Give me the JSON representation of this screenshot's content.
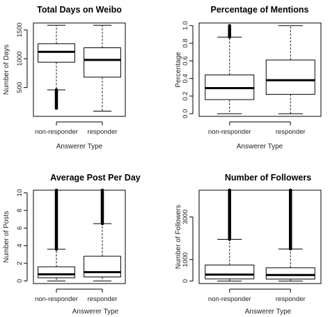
{
  "chart_data": [
    {
      "type": "boxplot",
      "title": "Total Days on Weibo",
      "xlabel": "Answerer Type",
      "ylabel": "Number of Days",
      "categories": [
        "non-responder",
        "responder"
      ],
      "ylim": [
        0,
        1620
      ],
      "yticks": [
        500,
        1000,
        1500
      ],
      "yticklabels": [
        "500",
        "1000",
        "1500"
      ],
      "boxes": [
        {
          "whisker_low": 460,
          "q1": 940,
          "median": 1120,
          "q3": 1260,
          "whisker_high": 1580,
          "outliers": [
            [
              140,
              460
            ]
          ]
        },
        {
          "whisker_low": 90,
          "q1": 680,
          "median": 980,
          "q3": 1190,
          "whisker_high": 1580,
          "outliers": []
        }
      ]
    },
    {
      "type": "boxplot",
      "title": "Percentage of Mentions",
      "xlabel": "Answerer Type",
      "ylabel": "Percentage",
      "categories": [
        "non-responder",
        "responder"
      ],
      "ylim": [
        -0.03,
        1.03
      ],
      "yticks": [
        0.0,
        0.2,
        0.4,
        0.6,
        0.8,
        1.0
      ],
      "yticklabels": [
        "0.0",
        "0.2",
        "0.4",
        "0.6",
        "0.8",
        "1.0"
      ],
      "boxes": [
        {
          "whisker_low": 0.0,
          "q1": 0.16,
          "median": 0.29,
          "q3": 0.44,
          "whisker_high": 0.87,
          "outliers": [
            [
              0.87,
              1.0
            ]
          ]
        },
        {
          "whisker_low": 0.0,
          "q1": 0.22,
          "median": 0.38,
          "q3": 0.61,
          "whisker_high": 1.0,
          "outliers": []
        }
      ]
    },
    {
      "type": "boxplot",
      "title": "Average Post Per Day",
      "xlabel": "Answerer Type",
      "ylabel": "Number of Posts",
      "categories": [
        "non-responder",
        "responder"
      ],
      "ylim": [
        -0.3,
        10.3
      ],
      "yticks": [
        0,
        2,
        4,
        6,
        8,
        10
      ],
      "yticklabels": [
        "0",
        "2",
        "4",
        "6",
        "8",
        "10"
      ],
      "boxes": [
        {
          "whisker_low": 0.0,
          "q1": 0.35,
          "median": 0.75,
          "q3": 1.6,
          "whisker_high": 3.6,
          "outliers": [
            [
              3.6,
              10.3
            ]
          ]
        },
        {
          "whisker_low": 0.0,
          "q1": 0.45,
          "median": 1.0,
          "q3": 2.8,
          "whisker_high": 6.5,
          "outliers": [
            [
              6.5,
              10.3
            ]
          ]
        }
      ]
    },
    {
      "type": "boxplot",
      "title": "Number of Followers",
      "xlabel": "Answerer Type",
      "ylabel": "Number of Followers",
      "categories": [
        "non-responder",
        "responder"
      ],
      "ylim": [
        -120,
        4250
      ],
      "yticks": [
        0,
        1000,
        3000
      ],
      "yticklabels": [
        "0",
        "1000",
        "3000"
      ],
      "boxes": [
        {
          "whisker_low": 0,
          "q1": 100,
          "median": 300,
          "q3": 750,
          "whisker_high": 1950,
          "outliers": [
            [
              1950,
              4250
            ]
          ]
        },
        {
          "whisker_low": 0,
          "q1": 90,
          "median": 280,
          "q3": 620,
          "whisker_high": 1500,
          "outliers": [
            [
              1500,
              4250
            ]
          ]
        }
      ]
    }
  ]
}
